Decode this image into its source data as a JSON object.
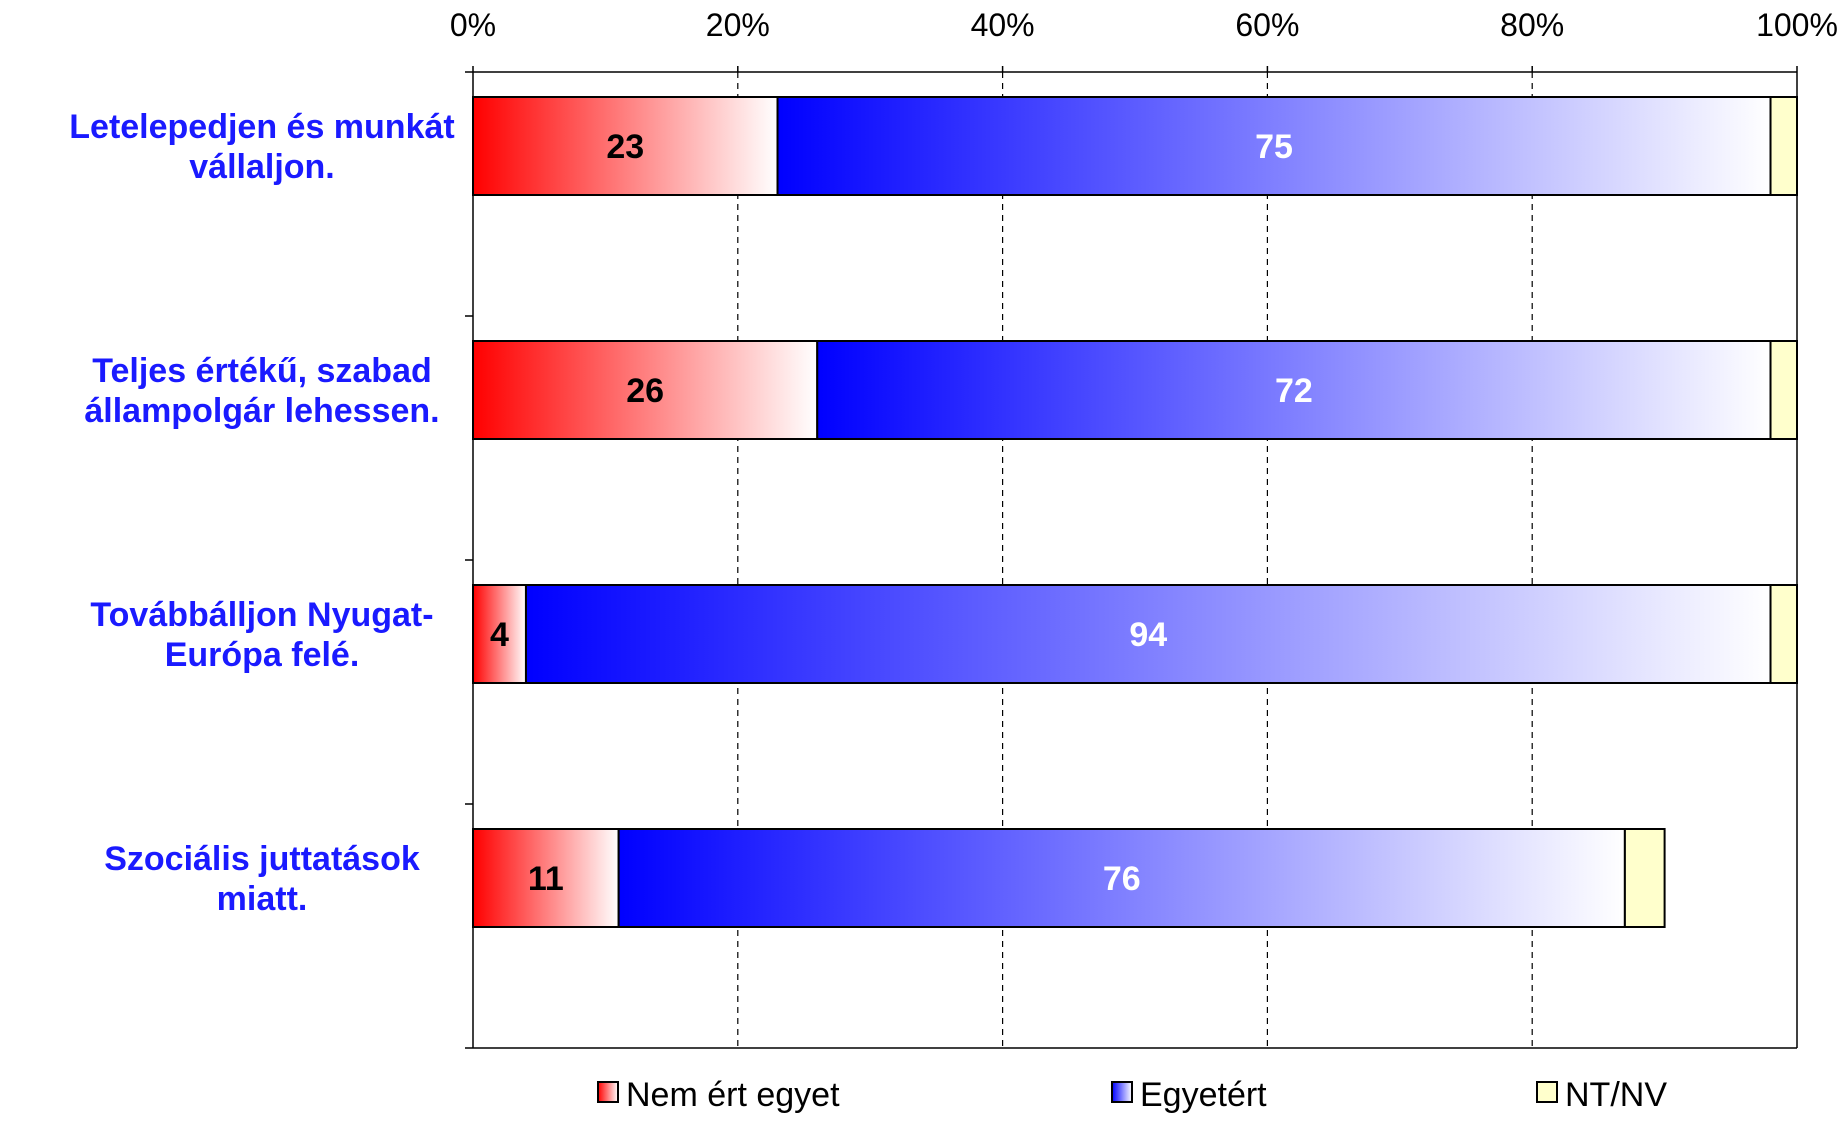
{
  "chart_data": {
    "type": "bar",
    "orientation": "horizontal",
    "stacked": "percent",
    "categories": [
      [
        "Letelepedjen és munkát",
        "vállaljon."
      ],
      [
        "Teljes értékű, szabad",
        "állampolgár lehessen."
      ],
      [
        "Továbbálljon Nyugat-",
        "Európa felé."
      ],
      [
        "Szociális juttatások",
        "miatt."
      ]
    ],
    "series": [
      {
        "name": "Nem ért egyet",
        "values": [
          23,
          26,
          4,
          11
        ],
        "color": "#ff0000",
        "label_color": "#000000",
        "show_labels": true
      },
      {
        "name": "Egyetért",
        "values": [
          75,
          72,
          94,
          76
        ],
        "color": "#0000ff",
        "label_color": "#ffffff",
        "show_labels": true
      },
      {
        "name": "NT/NV",
        "values": [
          2,
          2,
          2,
          3
        ],
        "color": "#ffffcc",
        "show_labels": false
      }
    ],
    "xlim": [
      0,
      100
    ],
    "xticks": [
      "0%",
      "20%",
      "40%",
      "60%",
      "80%",
      "100%"
    ],
    "grid": true,
    "legend_position": "bottom"
  }
}
